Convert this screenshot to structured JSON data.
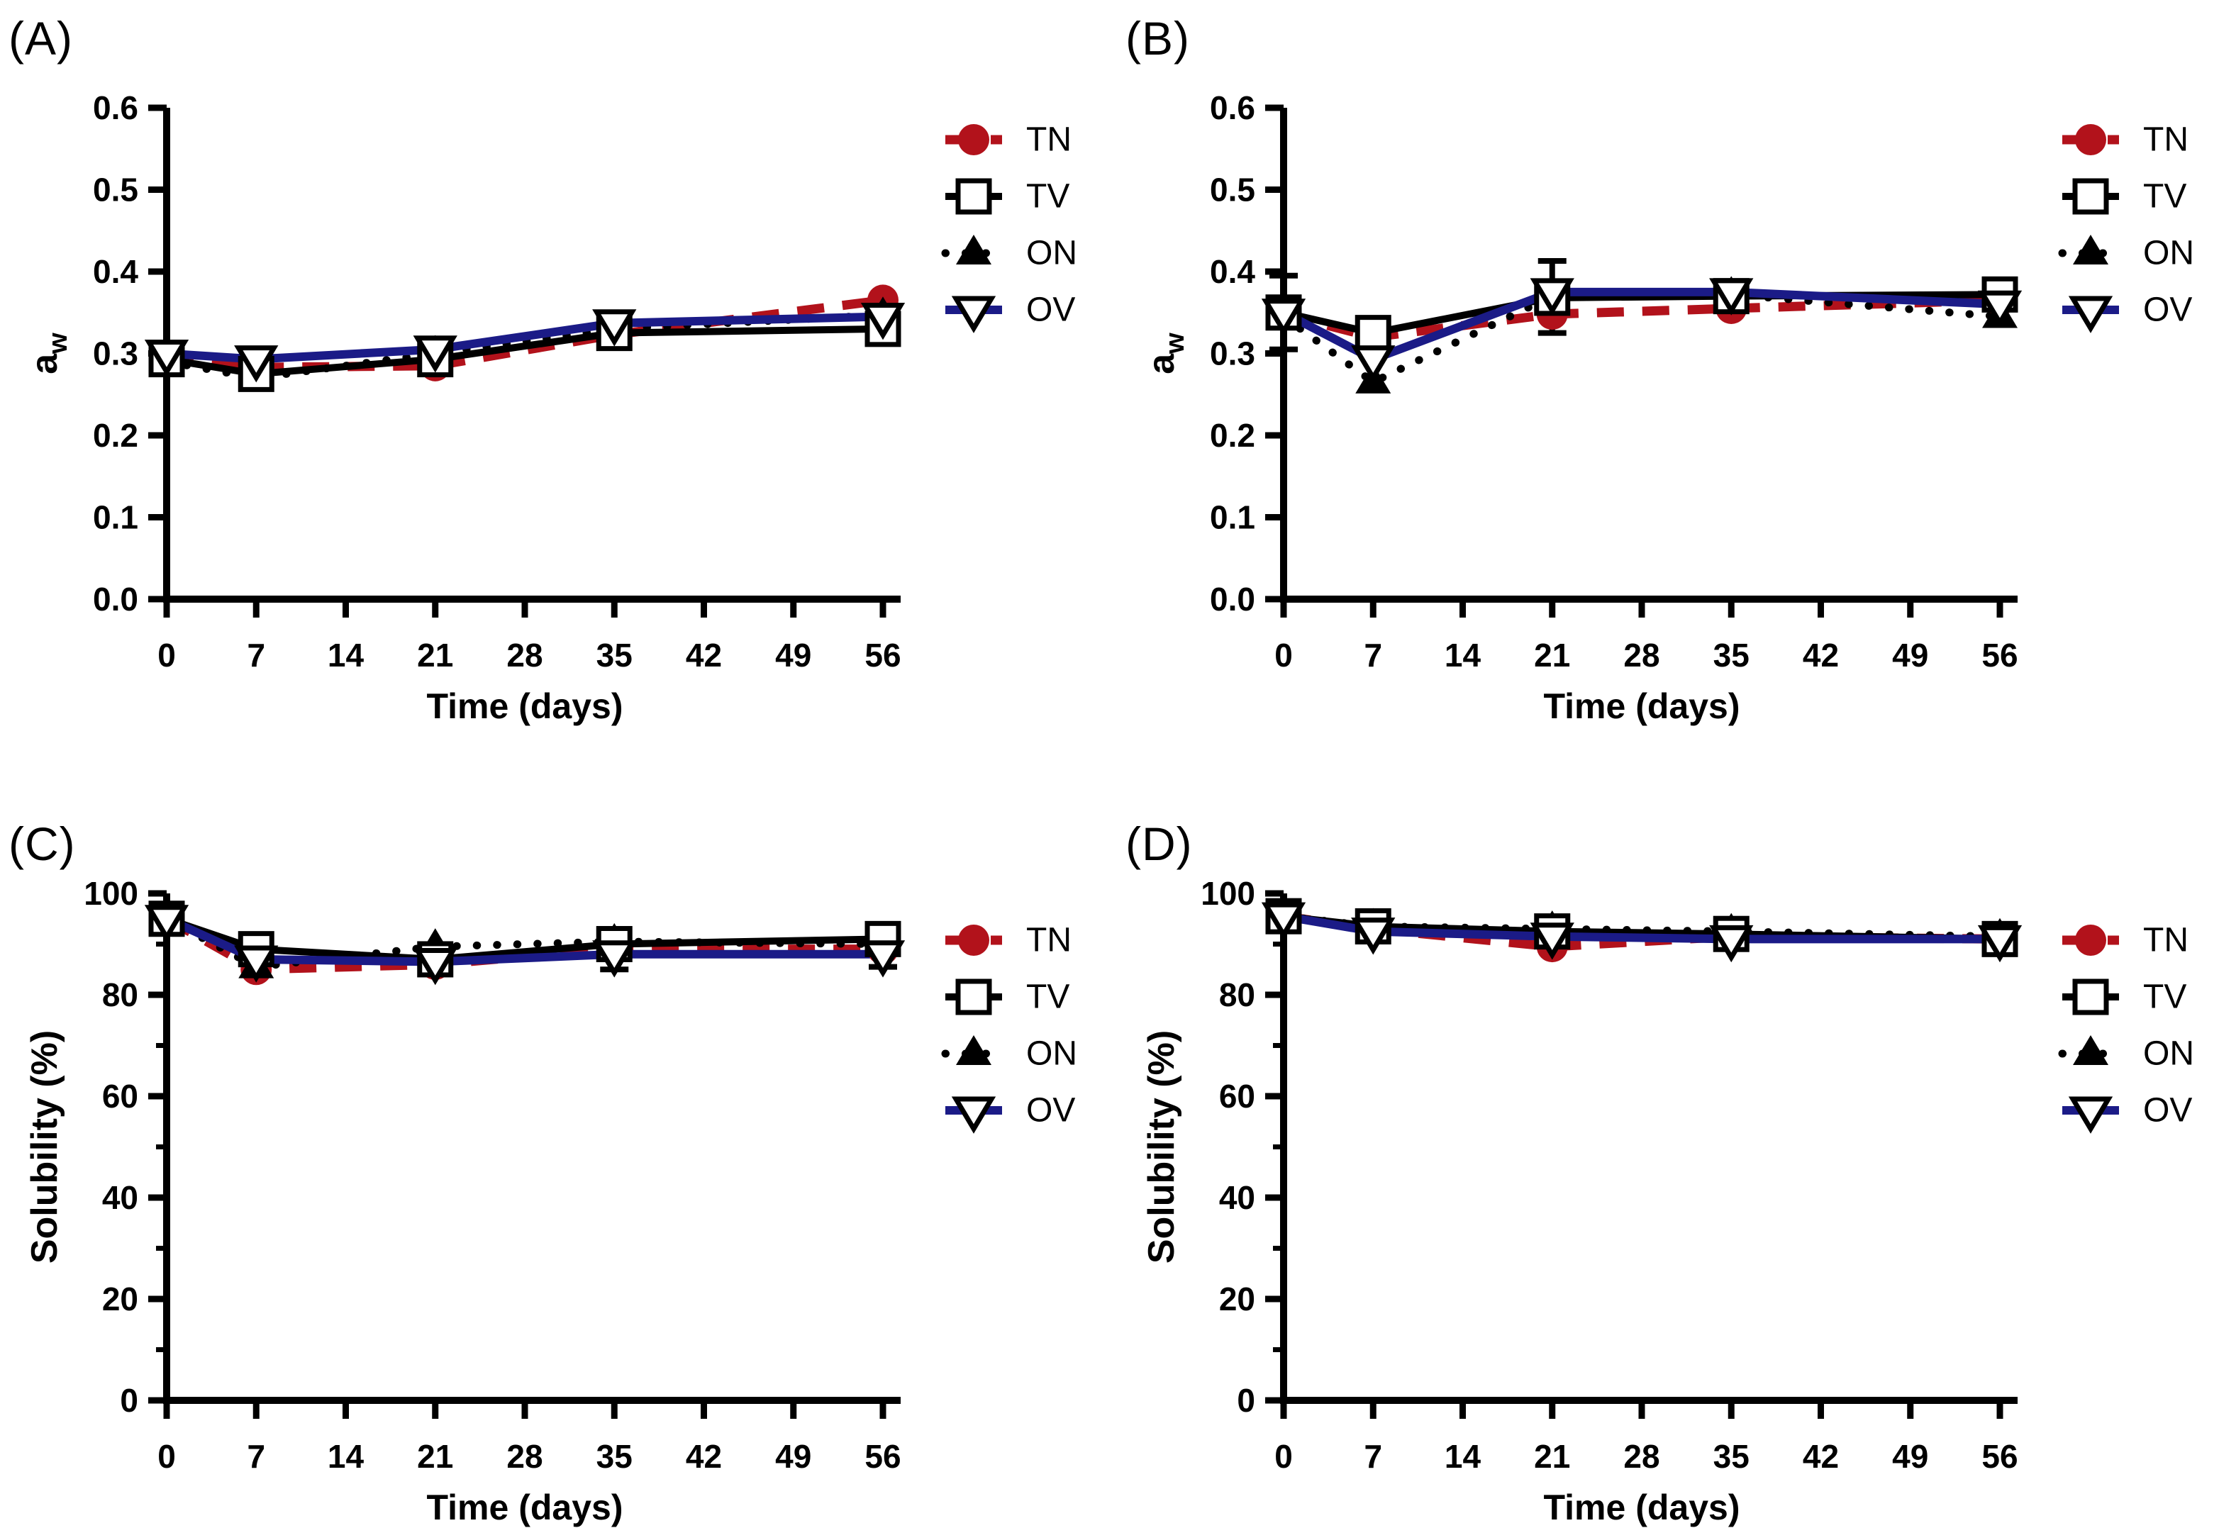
{
  "figure": {
    "background": "#ffffff",
    "accent_red": "#b2121b",
    "accent_blue": "#1b1b87",
    "axis_color": "#000000"
  },
  "chart_data": [
    {
      "panel": "(A)",
      "type": "line",
      "xlabel": "Time (days)",
      "ylabel": {
        "base": "a",
        "sub": "w"
      },
      "ylim": [
        0,
        0.6
      ],
      "ytick_values": [
        0,
        0.1,
        0.2,
        0.3,
        0.4,
        0.5,
        0.6
      ],
      "ytick_labels": [
        "0.0",
        "0.1",
        "0.2",
        "0.3",
        "0.4",
        "0.5",
        "0.6"
      ],
      "yminor": [],
      "xlim": [
        0,
        56
      ],
      "xtick_values": [
        0,
        7,
        14,
        21,
        28,
        35,
        42,
        49,
        56
      ],
      "xtick_labels": [
        "0",
        "7",
        "14",
        "21",
        "28",
        "35",
        "42",
        "49",
        "56"
      ],
      "x": [
        0,
        7,
        21,
        35,
        56
      ],
      "legend_position": "right",
      "grid": false,
      "series": [
        {
          "name": "TN",
          "color": "#b2121b",
          "line": "dashed",
          "marker": "circle",
          "values": [
            0.295,
            0.283,
            0.285,
            0.323,
            0.365
          ]
        },
        {
          "name": "TV",
          "color": "#000000",
          "line": "solid",
          "marker": "square-open",
          "values": [
            0.293,
            0.275,
            0.293,
            0.325,
            0.33
          ]
        },
        {
          "name": "ON",
          "color": "#000000",
          "line": "dotted",
          "marker": "triangle-up",
          "values": [
            0.29,
            0.27,
            0.3,
            0.33,
            0.347
          ]
        },
        {
          "name": "OV",
          "color": "#1b1b87",
          "line": "solid",
          "marker": "triangle-down-open",
          "values": [
            0.3,
            0.293,
            0.305,
            0.337,
            0.345
          ]
        }
      ],
      "error_bars": []
    },
    {
      "panel": "(B)",
      "type": "line",
      "xlabel": "Time (days)",
      "ylabel": {
        "base": "a",
        "sub": "w"
      },
      "ylim": [
        0,
        0.6
      ],
      "ytick_values": [
        0,
        0.1,
        0.2,
        0.3,
        0.4,
        0.5,
        0.6
      ],
      "ytick_labels": [
        "0.0",
        "0.1",
        "0.2",
        "0.3",
        "0.4",
        "0.5",
        "0.6"
      ],
      "yminor": [],
      "xlim": [
        0,
        56
      ],
      "xtick_values": [
        0,
        7,
        14,
        21,
        28,
        35,
        42,
        49,
        56
      ],
      "xtick_labels": [
        "0",
        "7",
        "14",
        "21",
        "28",
        "35",
        "42",
        "49",
        "56"
      ],
      "x": [
        0,
        7,
        21,
        35,
        56
      ],
      "legend_position": "right",
      "grid": false,
      "series": [
        {
          "name": "TN",
          "color": "#b2121b",
          "line": "dashed",
          "marker": "circle",
          "values": [
            0.348,
            0.32,
            0.348,
            0.355,
            0.365
          ]
        },
        {
          "name": "TV",
          "color": "#000000",
          "line": "solid",
          "marker": "square-open",
          "values": [
            0.35,
            0.325,
            0.368,
            0.37,
            0.372
          ]
        },
        {
          "name": "ON",
          "color": "#000000",
          "line": "dotted",
          "marker": "triangle-up",
          "values": [
            0.345,
            0.265,
            0.37,
            0.372,
            0.345
          ]
        },
        {
          "name": "OV",
          "color": "#1b1b87",
          "line": "solid",
          "marker": "triangle-down-open",
          "values": [
            0.35,
            0.293,
            0.375,
            0.375,
            0.36
          ]
        }
      ],
      "error_bars": [
        {
          "series": "TV",
          "x": 0,
          "plus": 0.045,
          "minus": 0.045
        },
        {
          "series": "TV",
          "x": 21,
          "plus": 0.045,
          "minus": 0.043
        },
        {
          "series": "TV",
          "x": 56,
          "plus": 0.015,
          "minus": 0
        }
      ]
    },
    {
      "panel": "(C)",
      "type": "line",
      "xlabel": "Time (days)",
      "ylabel": {
        "base": "Solubility (%)",
        "sub": ""
      },
      "ylim": [
        0,
        100
      ],
      "ytick_values": [
        0,
        20,
        40,
        60,
        80,
        100
      ],
      "ytick_labels": [
        "0",
        "20",
        "40",
        "60",
        "80",
        "100"
      ],
      "yminor": [
        10,
        30,
        50,
        70,
        90
      ],
      "xlim": [
        0,
        56
      ],
      "xtick_values": [
        0,
        7,
        14,
        21,
        28,
        35,
        42,
        49,
        56
      ],
      "xtick_labels": [
        "0",
        "7",
        "14",
        "21",
        "28",
        "35",
        "42",
        "49",
        "56"
      ],
      "x": [
        0,
        7,
        21,
        35,
        56
      ],
      "legend_position": "right",
      "grid": false,
      "series": [
        {
          "name": "TN",
          "color": "#b2121b",
          "line": "dashed",
          "marker": "circle",
          "values": [
            95,
            85,
            86,
            89,
            89
          ]
        },
        {
          "name": "TV",
          "color": "#000000",
          "line": "solid",
          "marker": "square-open",
          "values": [
            95,
            89,
            87,
            90,
            91
          ]
        },
        {
          "name": "ON",
          "color": "#000000",
          "line": "dotted",
          "marker": "triangle-up",
          "values": [
            95,
            85.5,
            89.5,
            90.5,
            90
          ]
        },
        {
          "name": "OV",
          "color": "#1b1b87",
          "line": "solid",
          "marker": "triangle-down-open",
          "values": [
            95,
            87,
            86.5,
            88,
            88
          ]
        }
      ],
      "error_bars": [
        {
          "series": "OV",
          "x": 35,
          "plus": 0,
          "minus": 3
        },
        {
          "series": "OV",
          "x": 56,
          "plus": 0,
          "minus": 2.5
        },
        {
          "series": "TV",
          "x": 56,
          "plus": 1,
          "minus": 0
        }
      ]
    },
    {
      "panel": "(D)",
      "type": "line",
      "xlabel": "Time (days)",
      "ylabel": {
        "base": "Solubility (%)",
        "sub": ""
      },
      "ylim": [
        0,
        100
      ],
      "ytick_values": [
        0,
        20,
        40,
        60,
        80,
        100
      ],
      "ytick_labels": [
        "0",
        "20",
        "40",
        "60",
        "80",
        "100"
      ],
      "yminor": [
        10,
        30,
        50,
        70,
        90
      ],
      "xlim": [
        0,
        56
      ],
      "xtick_values": [
        0,
        7,
        14,
        21,
        28,
        35,
        42,
        49,
        56
      ],
      "xtick_labels": [
        "0",
        "7",
        "14",
        "21",
        "28",
        "35",
        "42",
        "49",
        "56"
      ],
      "x": [
        0,
        7,
        21,
        35,
        56
      ],
      "legend_position": "right",
      "grid": false,
      "series": [
        {
          "name": "TN",
          "color": "#b2121b",
          "line": "dashed",
          "marker": "circle",
          "values": [
            95.5,
            93,
            89.5,
            91.5,
            91
          ]
        },
        {
          "name": "TV",
          "color": "#000000",
          "line": "solid",
          "marker": "square-open",
          "values": [
            95.5,
            93.5,
            92.5,
            92,
            91
          ]
        },
        {
          "name": "ON",
          "color": "#000000",
          "line": "dotted",
          "marker": "triangle-up",
          "values": [
            95.5,
            93.5,
            93,
            92.5,
            91.5
          ]
        },
        {
          "name": "OV",
          "color": "#1b1b87",
          "line": "solid",
          "marker": "triangle-down-open",
          "values": [
            95.5,
            92.5,
            91.5,
            91,
            91
          ]
        }
      ],
      "error_bars": [
        {
          "series": "OV",
          "x": 35,
          "plus": 0,
          "minus": 1.5
        },
        {
          "series": "TV",
          "x": 56,
          "plus": 1.5,
          "minus": 0
        }
      ]
    }
  ]
}
